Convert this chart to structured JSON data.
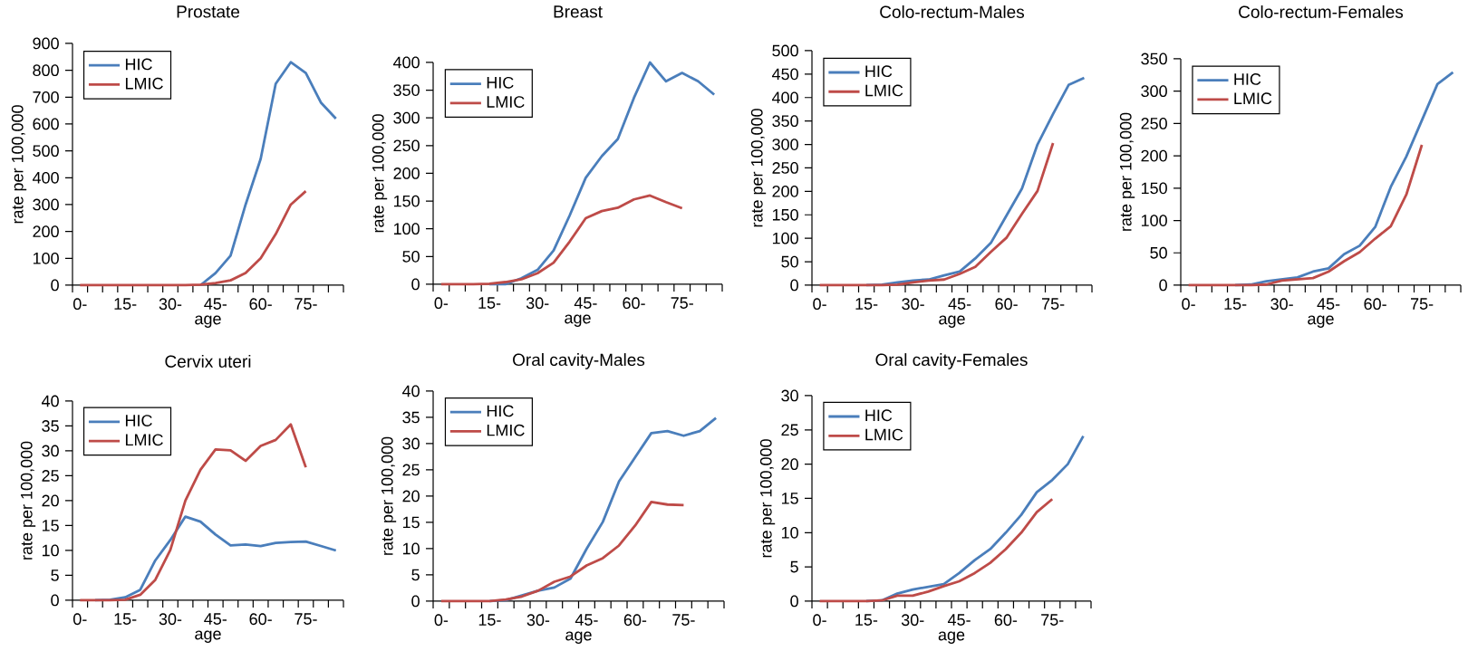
{
  "chart_data": [
    {
      "type": "line",
      "title": "Prostate",
      "xlabel": "age",
      "ylabel": "rate per 100,000",
      "legend": "top left",
      "marker": "none",
      "line_style": "solid",
      "categories": [
        "0-",
        null,
        null,
        "15-",
        null,
        null,
        "30-",
        null,
        null,
        "45-",
        null,
        null,
        "60-",
        null,
        null,
        "75-",
        null,
        null
      ],
      "ylim": [
        0,
        900
      ],
      "yticks": [
        0,
        100,
        200,
        300,
        400,
        500,
        600,
        700,
        800,
        900
      ],
      "series": [
        {
          "name": "HIC",
          "color": "#4a7ebb",
          "values": [
            null,
            null,
            null,
            null,
            null,
            null,
            null,
            null,
            0,
            45,
            110,
            300,
            470,
            750,
            830,
            790,
            680,
            620
          ]
        },
        {
          "name": "LMIC",
          "color": "#be4b48",
          "values": [
            0,
            0,
            0,
            0,
            0,
            0,
            0,
            0,
            2,
            8,
            18,
            45,
            100,
            190,
            300,
            350,
            null,
            null
          ]
        }
      ]
    },
    {
      "type": "line",
      "title": "Breast",
      "xlabel": "age",
      "ylabel": "rate per 100,000",
      "legend": "top left",
      "marker": "none",
      "line_style": "solid",
      "categories": [
        "0-",
        null,
        null,
        "15-",
        null,
        null,
        "30-",
        null,
        null,
        "45-",
        null,
        null,
        "60-",
        null,
        null,
        "75-",
        null,
        null
      ],
      "ylim": [
        0,
        400
      ],
      "yticks": [
        0,
        50,
        100,
        150,
        200,
        250,
        300,
        350,
        400
      ],
      "series": [
        {
          "name": "HIC",
          "color": "#4a7ebb",
          "values": [
            null,
            null,
            null,
            0,
            0,
            11,
            26,
            61,
            124,
            192,
            231,
            262,
            336,
            400,
            366,
            381,
            366,
            342
          ]
        },
        {
          "name": "LMIC",
          "color": "#be4b48",
          "values": [
            0,
            0,
            0,
            1,
            4,
            9,
            20,
            39,
            77,
            119,
            132,
            138,
            153,
            160,
            148,
            137,
            null,
            null
          ]
        }
      ]
    },
    {
      "type": "line",
      "title": "Colo-rectum-Males",
      "xlabel": "age",
      "ylabel": "rate per 100,000",
      "legend": "top left",
      "marker": "none",
      "line_style": "solid",
      "categories": [
        "0-",
        null,
        null,
        "15-",
        null,
        null,
        "30-",
        null,
        null,
        "45-",
        null,
        null,
        "60-",
        null,
        null,
        "75-",
        null,
        null
      ],
      "ylim": [
        0,
        500
      ],
      "yticks": [
        0,
        50,
        100,
        150,
        200,
        250,
        300,
        350,
        400,
        450,
        500
      ],
      "series": [
        {
          "name": "HIC",
          "color": "#4a7ebb",
          "values": [
            null,
            null,
            null,
            0,
            1,
            6,
            10,
            12,
            21,
            29,
            57,
            90,
            148,
            206,
            300,
            365,
            427,
            442
          ]
        },
        {
          "name": "LMIC",
          "color": "#be4b48",
          "values": [
            0,
            0,
            0,
            0,
            0,
            1,
            6,
            10,
            12,
            24,
            39,
            71,
            101,
            152,
            201,
            303,
            null,
            null
          ]
        }
      ]
    },
    {
      "type": "line",
      "title": "Colo-rectum-Females",
      "xlabel": "age",
      "ylabel": "rate per 100,000",
      "legend": "top left",
      "marker": "none",
      "line_style": "solid",
      "categories": [
        "0-",
        null,
        null,
        "15-",
        null,
        null,
        "30-",
        null,
        null,
        "45-",
        null,
        null,
        "60-",
        null,
        null,
        "75-",
        null,
        null
      ],
      "ylim": [
        0,
        350
      ],
      "yticks": [
        0,
        50,
        100,
        150,
        200,
        250,
        300,
        350
      ],
      "series": [
        {
          "name": "HIC",
          "color": "#4a7ebb",
          "values": [
            null,
            null,
            null,
            0,
            1,
            6,
            9,
            12,
            21,
            26,
            48,
            61,
            90,
            152,
            199,
            255,
            311,
            329
          ]
        },
        {
          "name": "LMIC",
          "color": "#be4b48",
          "values": [
            0,
            0,
            0,
            0,
            0,
            1,
            7,
            9,
            11,
            21,
            37,
            51,
            72,
            91,
            140,
            217,
            null,
            null
          ]
        }
      ]
    },
    {
      "type": "line",
      "title": "Cervix uteri",
      "xlabel": "age",
      "ylabel": "rate per 100,000",
      "legend": "top left",
      "marker": "none",
      "line_style": "solid",
      "categories": [
        "0-",
        null,
        null,
        "15-",
        null,
        null,
        "30-",
        null,
        null,
        "45-",
        null,
        null,
        "60-",
        null,
        null,
        "75-",
        null,
        null
      ],
      "ylim": [
        0,
        40
      ],
      "yticks": [
        0,
        5,
        10,
        15,
        20,
        25,
        30,
        35,
        40
      ],
      "series": [
        {
          "name": "HIC",
          "color": "#4a7ebb",
          "values": [
            null,
            0,
            0.1,
            0.6,
            2.1,
            8,
            12.1,
            16.8,
            15.8,
            13.2,
            11,
            11.2,
            10.9,
            11.5,
            11.7,
            11.8,
            10.9,
            10
          ]
        },
        {
          "name": "LMIC",
          "color": "#be4b48",
          "values": [
            0,
            0,
            0,
            0.1,
            1.1,
            4.1,
            10.1,
            20,
            26.2,
            30.3,
            30.1,
            28,
            31,
            32.2,
            35.3,
            26.7,
            null,
            null
          ]
        }
      ]
    },
    {
      "type": "line",
      "title": "Oral cavity-Males",
      "xlabel": "age",
      "ylabel": "rate per 100,000",
      "legend": "top left",
      "marker": "none",
      "line_style": "solid",
      "categories": [
        "0-",
        null,
        null,
        "15-",
        null,
        null,
        "30-",
        null,
        null,
        "45-",
        null,
        null,
        "60-",
        null,
        null,
        "75-",
        null,
        null
      ],
      "ylim": [
        0,
        40
      ],
      "yticks": [
        0,
        5,
        10,
        15,
        20,
        25,
        30,
        35,
        40
      ],
      "series": [
        {
          "name": "HIC",
          "color": "#4a7ebb",
          "values": [
            null,
            null,
            null,
            0,
            0.2,
            1.1,
            2,
            2.6,
            4.3,
            10,
            15.1,
            22.8,
            27.4,
            32,
            32.4,
            31.5,
            32.4,
            34.9
          ]
        },
        {
          "name": "LMIC",
          "color": "#be4b48",
          "values": [
            0,
            0,
            0,
            0,
            0.3,
            0.9,
            2,
            3.7,
            4.7,
            6.8,
            8.2,
            10.6,
            14.4,
            18.9,
            18.4,
            18.3,
            null,
            null
          ]
        }
      ]
    },
    {
      "type": "line",
      "title": "Oral cavity-Females",
      "xlabel": "age",
      "ylabel": "rate per 100,000",
      "legend": "top left",
      "marker": "none",
      "line_style": "solid",
      "categories": [
        "0-",
        null,
        null,
        "15-",
        null,
        null,
        "30-",
        null,
        null,
        "45-",
        null,
        null,
        "60-",
        null,
        null,
        "75-",
        null,
        null
      ],
      "ylim": [
        0,
        30
      ],
      "yticks": [
        0,
        5,
        10,
        15,
        20,
        25,
        30
      ],
      "series": [
        {
          "name": "HIC",
          "color": "#4a7ebb",
          "values": [
            null,
            null,
            null,
            0,
            0.1,
            1.1,
            1.7,
            2.1,
            2.5,
            4.1,
            6,
            7.6,
            10,
            12.6,
            15.9,
            17.7,
            20,
            24.1
          ]
        },
        {
          "name": "LMIC",
          "color": "#be4b48",
          "values": [
            0,
            0,
            0,
            0,
            0.1,
            0.8,
            0.8,
            1.4,
            2.2,
            2.9,
            4.1,
            5.6,
            7.6,
            10,
            13,
            14.9,
            null,
            null
          ]
        }
      ]
    }
  ]
}
